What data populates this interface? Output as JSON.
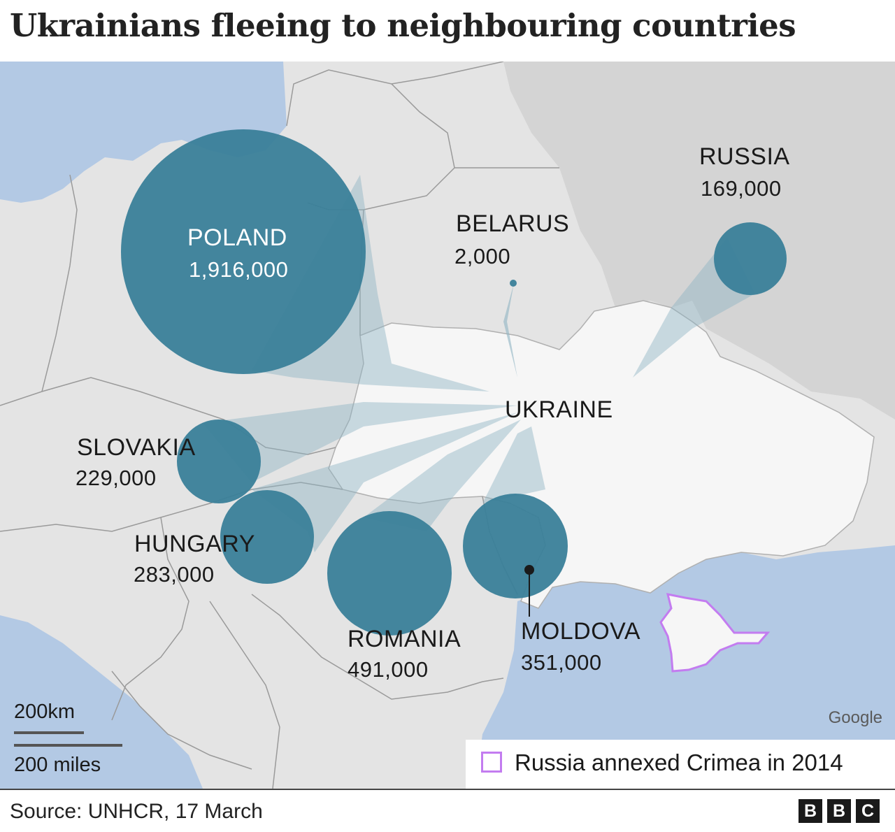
{
  "title": "Ukrainians fleeing to neighbouring countries",
  "countries": {
    "poland": {
      "name": "POLAND",
      "value": "1,916,000",
      "count": 1916000
    },
    "russia": {
      "name": "RUSSIA",
      "value": "169,000",
      "count": 169000
    },
    "belarus": {
      "name": "BELARUS",
      "value": "2,000",
      "count": 2000
    },
    "slovakia": {
      "name": "SLOVAKIA",
      "value": "229,000",
      "count": 229000
    },
    "hungary": {
      "name": "HUNGARY",
      "value": "283,000",
      "count": 283000
    },
    "romania": {
      "name": "ROMANIA",
      "value": "491,000",
      "count": 491000
    },
    "moldova": {
      "name": "MOLDOVA",
      "value": "351,000",
      "count": 351000
    }
  },
  "ukraine_label": "UKRAINE",
  "scale": {
    "km": "200km",
    "miles": "200 miles"
  },
  "map_credit": "Google",
  "legend": {
    "crimea": "Russia annexed Crimea in 2014"
  },
  "source": "Source: UNHCR, 17 March",
  "logo": [
    "B",
    "B",
    "C"
  ],
  "colors": {
    "bubble": "#3a7f99",
    "sea": "#b3c9e4",
    "land": "#e4e4e4",
    "russia_land": "#d4d4d4",
    "ukraine_land": "#f6f6f6",
    "crimea_outline": "#c37cf0"
  }
}
